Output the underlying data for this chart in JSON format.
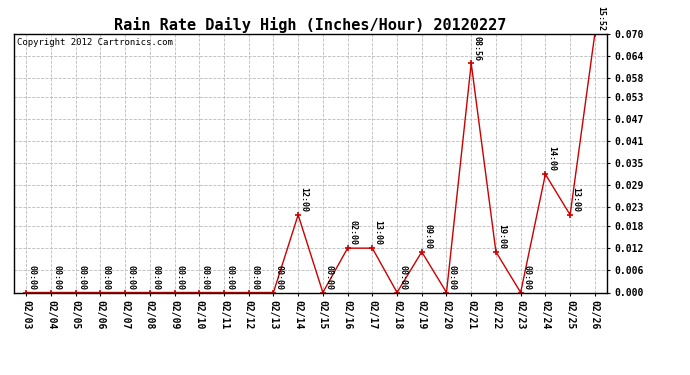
{
  "title": "Rain Rate Daily High (Inches/Hour) 20120227",
  "copyright": "Copyright 2012 Cartronics.com",
  "x_labels": [
    "02/03",
    "02/04",
    "02/05",
    "02/06",
    "02/07",
    "02/08",
    "02/09",
    "02/10",
    "02/11",
    "02/12",
    "02/13",
    "02/14",
    "02/15",
    "02/16",
    "02/17",
    "02/18",
    "02/19",
    "02/20",
    "02/21",
    "02/22",
    "02/23",
    "02/24",
    "02/25",
    "02/26"
  ],
  "y_values": [
    0.0,
    0.0,
    0.0,
    0.0,
    0.0,
    0.0,
    0.0,
    0.0,
    0.0,
    0.0,
    0.0,
    0.021,
    0.0,
    0.012,
    0.012,
    0.0,
    0.011,
    0.0,
    0.062,
    0.011,
    0.0,
    0.032,
    0.021,
    0.07
  ],
  "time_labels": [
    "00:00",
    "00:00",
    "00:00",
    "00:00",
    "00:00",
    "00:00",
    "00:00",
    "00:00",
    "00:00",
    "00:00",
    "00:00",
    "12:00",
    "00:00",
    "02:00",
    "13:00",
    "00:00",
    "09:00",
    "00:00",
    "08:56",
    "19:00",
    "00:00",
    "14:00",
    "13:00",
    "15:52"
  ],
  "line_color": "#cc0000",
  "background_color": "#ffffff",
  "grid_color": "#bbbbbb",
  "ylim": [
    0.0,
    0.07
  ],
  "yticks": [
    0.0,
    0.006,
    0.012,
    0.018,
    0.023,
    0.029,
    0.035,
    0.041,
    0.047,
    0.053,
    0.058,
    0.064,
    0.07
  ],
  "title_fontsize": 11,
  "tick_fontsize": 7,
  "annot_fontsize": 6,
  "copyright_fontsize": 6.5
}
